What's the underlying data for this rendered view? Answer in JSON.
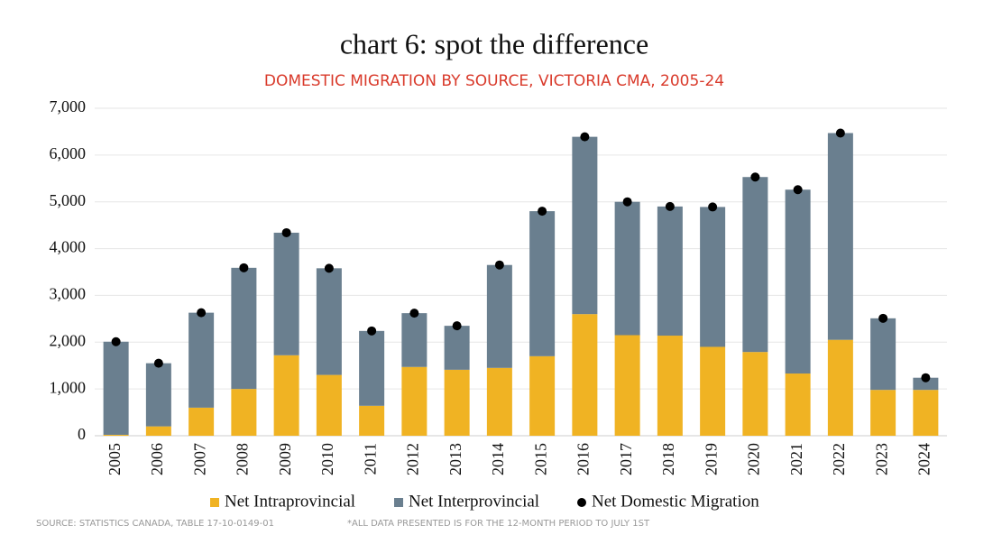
{
  "chart_data": {
    "type": "bar",
    "stacked": true,
    "title": "chart 6: spot the difference",
    "subtitle": "DOMESTIC MIGRATION BY SOURCE, VICTORIA CMA, 2005-24",
    "categories": [
      "2005",
      "2006",
      "2007",
      "2008",
      "2009",
      "2010",
      "2011",
      "2012",
      "2013",
      "2014",
      "2015",
      "2016",
      "2017",
      "2018",
      "2019",
      "2020",
      "2021",
      "2022",
      "2023",
      "2024"
    ],
    "series": [
      {
        "name": "Net Intraprovincial",
        "color": "#f0b323",
        "values": [
          20,
          200,
          600,
          1000,
          1720,
          1300,
          640,
          1470,
          1410,
          1450,
          1700,
          2600,
          2150,
          2140,
          1900,
          1790,
          1330,
          2050,
          980,
          980
        ]
      },
      {
        "name": "Net Interprovincial",
        "color": "#6a7f8f",
        "values": [
          1990,
          1350,
          2030,
          2590,
          2620,
          2280,
          1600,
          1150,
          940,
          2200,
          3100,
          3790,
          2850,
          2760,
          2990,
          3740,
          3930,
          4420,
          1530,
          260
        ]
      },
      {
        "name": "Net Domestic Migration",
        "color": "#000000",
        "type": "scatter",
        "values": [
          2010,
          1550,
          2630,
          3590,
          4340,
          3580,
          2240,
          2620,
          2350,
          3650,
          4800,
          6390,
          5000,
          4900,
          4890,
          5530,
          5260,
          6470,
          2510,
          1240
        ]
      }
    ],
    "ylim": [
      0,
      7000
    ],
    "yticks": [
      0,
      {
        "value": 1000,
        "label": "1,000"
      },
      {
        "value": 2000,
        "label": "2,000"
      },
      {
        "value": 3000,
        "label": "3,000"
      },
      {
        "value": 4000,
        "label": "4,000"
      },
      {
        "value": 5000,
        "label": "5,000"
      },
      {
        "value": 6000,
        "label": "6,000"
      },
      {
        "value": 7000,
        "label": "7,000"
      }
    ],
    "grid": true,
    "legend": "bottom",
    "source": "SOURCE: STATISTICS CANADA, TABLE 17-10-0149-01",
    "note": "*ALL DATA PRESENTED IS FOR THE 12-MONTH PERIOD TO JULY 1ST"
  }
}
